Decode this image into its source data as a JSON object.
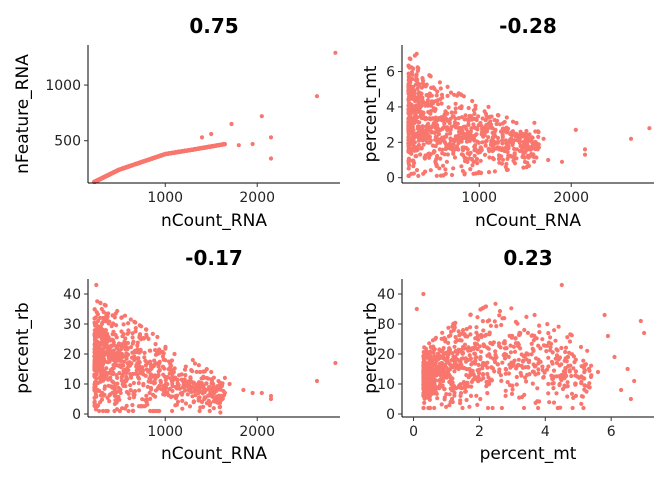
{
  "chart_data": [
    {
      "type": "scatter",
      "title": "0.75",
      "xlabel": "nCount_RNA",
      "ylabel": "nFeature_RNA",
      "xlim": [
        160,
        2900
      ],
      "ylim": [
        120,
        1360
      ],
      "xticks": [
        1000,
        2000
      ],
      "yticks": [
        500,
        1000
      ],
      "color": "#F8766D",
      "grid": false,
      "cloud": [
        [
          230,
          130,
          160,
          0.9
        ],
        [
          500,
          240,
          700,
          0.85
        ],
        [
          1000,
          380,
          220,
          0.8
        ],
        [
          1300,
          420,
          70,
          0.7
        ],
        [
          1650,
          470,
          18,
          0.6
        ]
      ],
      "outliers": [
        [
          2850,
          1290
        ],
        [
          2650,
          900
        ],
        [
          2050,
          720
        ],
        [
          2150,
          530
        ],
        [
          2150,
          340
        ],
        [
          1950,
          470
        ],
        [
          1720,
          650
        ],
        [
          1500,
          560
        ],
        [
          1400,
          530
        ],
        [
          1800,
          460
        ]
      ]
    },
    {
      "type": "scatter",
      "title": "-0.28",
      "xlabel": "nCount_RNA",
      "ylabel": "percent_mt",
      "xlim": [
        160,
        2900
      ],
      "ylim": [
        -0.3,
        7.5
      ],
      "xticks": [
        1000,
        2000
      ],
      "yticks": [
        0,
        2,
        4,
        6
      ],
      "color": "#F8766D",
      "grid": false,
      "cloud": [
        [
          230,
          0.1,
          160,
          6.8
        ],
        [
          500,
          0.1,
          700,
          5.6
        ],
        [
          900,
          0.2,
          300,
          4.4
        ],
        [
          1250,
          0.4,
          90,
          3.4
        ],
        [
          1650,
          0.7,
          25,
          2.6
        ]
      ],
      "outliers": [
        [
          2850,
          2.8
        ],
        [
          2650,
          2.2
        ],
        [
          2150,
          1.6
        ],
        [
          2150,
          1.3
        ],
        [
          2050,
          2.7
        ],
        [
          1750,
          1.0
        ],
        [
          1600,
          3.1
        ],
        [
          1450,
          2.6
        ],
        [
          1300,
          3.4
        ],
        [
          1100,
          4.0
        ],
        [
          300,
          6.9
        ],
        [
          320,
          7.0
        ],
        [
          1700,
          2.2
        ],
        [
          1900,
          0.9
        ]
      ]
    },
    {
      "type": "scatter",
      "title": "-0.17",
      "xlabel": "nCount_RNA",
      "ylabel": "percent_rb",
      "xlim": [
        160,
        2900
      ],
      "ylim": [
        -1,
        45
      ],
      "xticks": [
        1000,
        2000
      ],
      "yticks": [
        0,
        10,
        20,
        30,
        40
      ],
      "color": "#F8766D",
      "grid": false,
      "cloud": [
        [
          230,
          1,
          160,
          38
        ],
        [
          500,
          1,
          700,
          34
        ],
        [
          900,
          1,
          300,
          26
        ],
        [
          1250,
          1,
          90,
          18
        ],
        [
          1650,
          1,
          25,
          12
        ]
      ],
      "outliers": [
        [
          250,
          43
        ],
        [
          2850,
          17
        ],
        [
          2650,
          11
        ],
        [
          2150,
          5
        ],
        [
          2050,
          7
        ],
        [
          2150,
          6
        ],
        [
          1950,
          7
        ],
        [
          1700,
          10
        ],
        [
          1500,
          14
        ],
        [
          1400,
          4
        ],
        [
          1600,
          0.5
        ],
        [
          1850,
          8
        ],
        [
          1300,
          18
        ],
        [
          1100,
          20
        ]
      ]
    },
    {
      "type": "scatter",
      "title": "0.23",
      "xlabel": "percent_mt",
      "ylabel": "percent_rb",
      "xlim": [
        -0.35,
        7.3
      ],
      "ylim": [
        -1,
        45
      ],
      "xticks": [
        0,
        2,
        4,
        6
      ],
      "yticks": [
        0,
        10,
        20,
        30,
        40
      ],
      "color": "#F8766D",
      "grid": false,
      "cloud": [
        [
          0.3,
          2,
          0.6,
          22
        ],
        [
          1.2,
          2,
          1.5,
          30
        ],
        [
          2.4,
          2,
          2.8,
          37
        ],
        [
          4.0,
          2,
          4.4,
          32
        ],
        [
          5.4,
          2,
          5.4,
          22
        ]
      ],
      "outliers": [
        [
          4.5,
          43
        ],
        [
          6.9,
          31
        ],
        [
          7.0,
          27
        ],
        [
          6.7,
          11
        ],
        [
          6.5,
          15
        ],
        [
          6.3,
          8
        ],
        [
          6.1,
          19
        ],
        [
          5.9,
          26
        ],
        [
          5.8,
          33
        ],
        [
          5.6,
          14
        ],
        [
          6.6,
          5
        ],
        [
          0.1,
          35
        ],
        [
          0.3,
          40
        ]
      ]
    }
  ]
}
